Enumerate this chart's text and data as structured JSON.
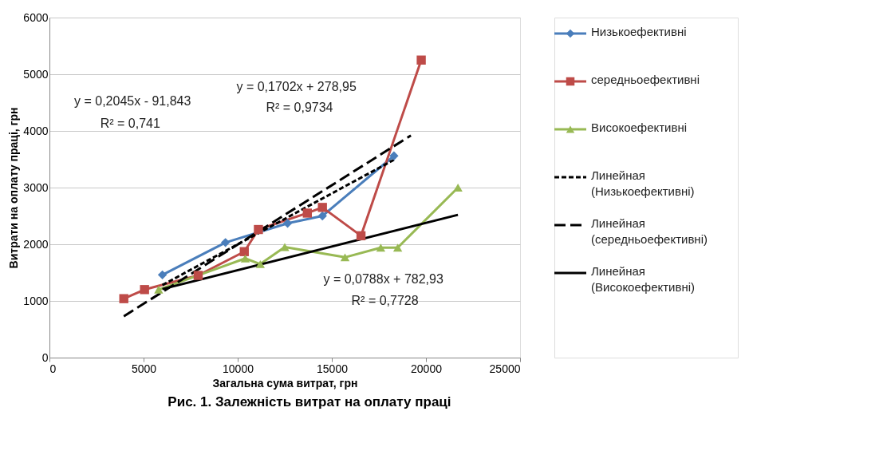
{
  "chart_data": {
    "type": "line",
    "xlabel": "Загальна сума витрат, грн",
    "ylabel": "Витрати на оплату праці, грн",
    "xlim": [
      0,
      25000
    ],
    "xticks": [
      0,
      5000,
      10000,
      15000,
      20000,
      25000
    ],
    "ylim": [
      0,
      6000
    ],
    "yticks": [
      0,
      1000,
      2000,
      3000,
      4000,
      5000,
      6000
    ],
    "grid": "y",
    "legend": "right",
    "series": [
      {
        "name": "Низькоефективні",
        "color": "#4a7ebb",
        "marker": "diamond",
        "line_style": "solid",
        "x": [
          6000,
          9350,
          12650,
          14500,
          18300
        ],
        "values": [
          1460,
          2030,
          2370,
          2500,
          3560
        ]
      },
      {
        "name": "середньоефективні",
        "color": "#be4b48",
        "marker": "square",
        "line_style": "solid",
        "x": [
          3950,
          5050,
          7900,
          10350,
          11100,
          13700,
          14500,
          16550,
          19750
        ],
        "values": [
          1040,
          1200,
          1450,
          1870,
          2260,
          2550,
          2650,
          2150,
          5250
        ]
      },
      {
        "name": "Високоефективні",
        "color": "#98b954",
        "marker": "triangle",
        "line_style": "solid",
        "x": [
          5800,
          10400,
          11200,
          12500,
          15700,
          17600,
          18500,
          21700
        ],
        "values": [
          1200,
          1750,
          1650,
          1950,
          1770,
          1940,
          1940,
          3000
        ]
      },
      {
        "name": "Линейная (Низькоефективні)",
        "color": "#000000",
        "marker": "none",
        "line_style": "dashed",
        "x": [
          6000,
          18300
        ],
        "values": [
          1280,
          3490
        ]
      },
      {
        "name": "Линейная (середньоефективні)",
        "color": "#000000",
        "marker": "none",
        "line_style": "longdash",
        "x": [
          3950,
          19200
        ],
        "values": [
          730,
          3920
        ]
      },
      {
        "name": "Линейная (Високоефективні)",
        "color": "#000000",
        "marker": "none",
        "line_style": "solid",
        "x": [
          6000,
          21700
        ],
        "values": [
          1210,
          2520
        ]
      }
    ],
    "annotations": [
      "y = 0,2045x - 91,843",
      "R² = 0,741",
      "y = 0,1702x + 278,95",
      "R² = 0,9734",
      "y = 0,0788x + 782,93",
      "R² = 0,7728",
      "Рис. 1. Залежність витрат на оплату праці"
    ]
  }
}
